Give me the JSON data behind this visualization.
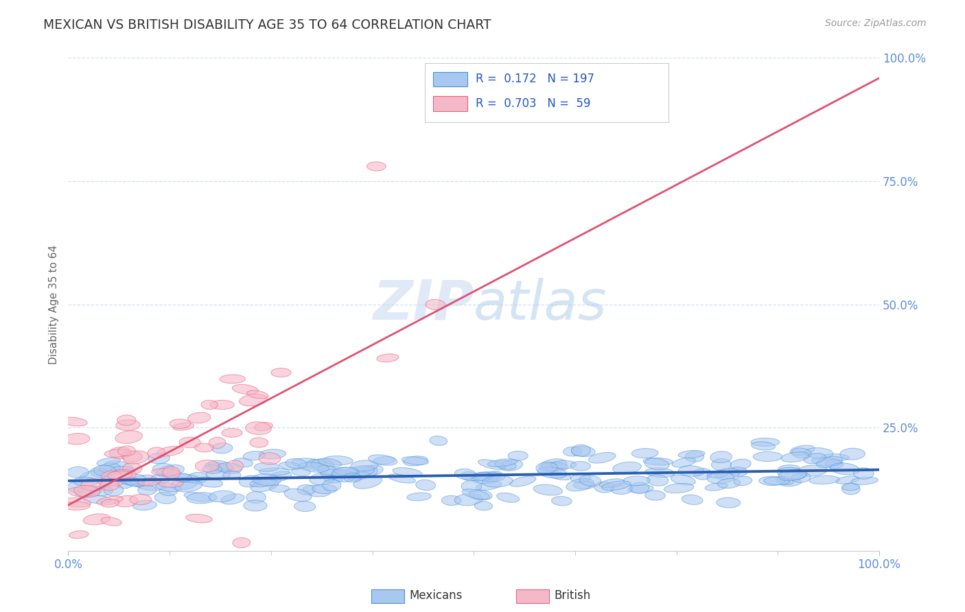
{
  "title": "MEXICAN VS BRITISH DISABILITY AGE 35 TO 64 CORRELATION CHART",
  "source_text": "Source: ZipAtlas.com",
  "ylabel": "Disability Age 35 to 64",
  "xlim": [
    0.0,
    1.0
  ],
  "ylim": [
    0.0,
    1.0
  ],
  "ytick_labels": [
    "25.0%",
    "50.0%",
    "75.0%",
    "100.0%"
  ],
  "ytick_values": [
    0.25,
    0.5,
    0.75,
    1.0
  ],
  "legend_r_mexican": "0.172",
  "legend_n_mexican": "197",
  "legend_r_british": "0.703",
  "legend_n_british": "59",
  "watermark_zip": "ZIP",
  "watermark_atlas": "atlas",
  "blue_color": "#a8c8f0",
  "pink_color": "#f5b8c8",
  "blue_edge_color": "#4a90d9",
  "pink_edge_color": "#e86080",
  "blue_line_color": "#2a5db0",
  "pink_line_color": "#e05070",
  "title_color": "#333333",
  "axis_label_color": "#666666",
  "tick_label_color": "#5b8dd9",
  "grid_color": "#d0dff5",
  "legend_r_color": "#2255cc",
  "background_color": "#ffffff",
  "mexican_n": 197,
  "british_n": 59,
  "british_line_x0": 0.0,
  "british_line_y0": 0.05,
  "british_line_x1": 1.0,
  "british_line_y1": 0.88,
  "mexican_line_x0": 0.0,
  "mexican_line_y0": 0.135,
  "mexican_line_x1": 1.0,
  "mexican_line_y1": 0.165
}
